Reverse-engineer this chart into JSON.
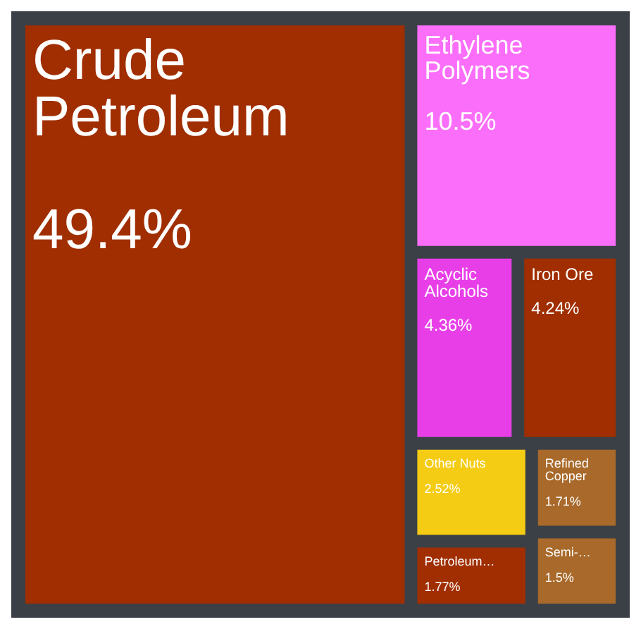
{
  "chart_data": {
    "type": "other",
    "categories": [
      "Crude Petroleum",
      "Ethylene Polymers",
      "Acyclic Alcohols",
      "Iron Ore",
      "Other Nuts",
      "Petroleum…",
      "Refined Copper",
      "Semi-…"
    ],
    "values": [
      49.4,
      10.5,
      4.36,
      4.24,
      2.52,
      1.77,
      1.71,
      1.5
    ],
    "value_labels": [
      "49.4%",
      "10.5%",
      "4.36%",
      "4.24%",
      "2.52%",
      "1.77%",
      "1.71%",
      "1.5%"
    ],
    "colors": [
      "#a02e00",
      "#fb6ef9",
      "#e83ee8",
      "#a02e00",
      "#f5cc14",
      "#a02e00",
      "#a8692a",
      "#a8692a"
    ]
  }
}
